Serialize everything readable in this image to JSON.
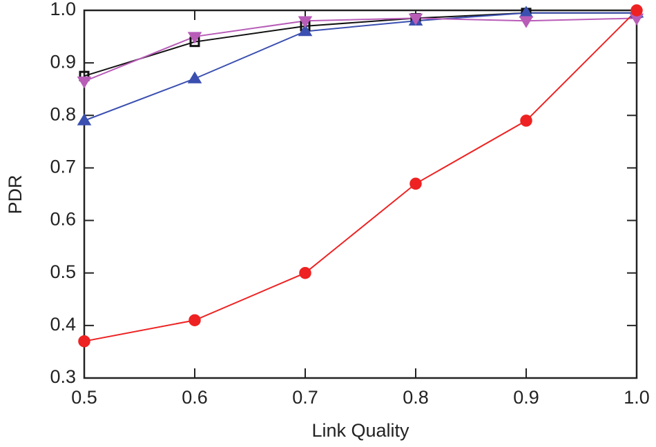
{
  "chart_data": {
    "type": "line",
    "x_label": "Link Quality",
    "y_label": "PDR",
    "x": [
      0.5,
      0.6,
      0.7,
      0.8,
      0.9,
      1.0
    ],
    "series": [
      {
        "color": "#111111",
        "marker": "square",
        "values": [
          0.875,
          0.94,
          0.97,
          0.985,
          0.995,
          0.995
        ]
      },
      {
        "color": "#3a4fb0",
        "marker": "triangle-up",
        "values": [
          0.79,
          0.87,
          0.96,
          0.98,
          0.995,
          0.995
        ]
      },
      {
        "color": "#b85cb8",
        "marker": "triangle-down",
        "values": [
          0.865,
          0.95,
          0.98,
          0.985,
          0.98,
          0.985
        ]
      },
      {
        "color": "#ee2222",
        "marker": "circle",
        "values": [
          0.37,
          0.41,
          0.5,
          0.67,
          0.79,
          1.0
        ]
      }
    ],
    "xlim": [
      0.5,
      1.0
    ],
    "xticks": [
      0.5,
      0.6,
      0.7,
      0.8,
      0.9,
      {
        "value": 1.0,
        "label": "1.0"
      }
    ],
    "ylim": [
      0.3,
      1.0
    ],
    "yticks": [
      0.3,
      0.4,
      0.5,
      0.6,
      0.7,
      0.8,
      0.9,
      {
        "value": 1.0,
        "label": "1.0"
      }
    ],
    "grid": false
  }
}
